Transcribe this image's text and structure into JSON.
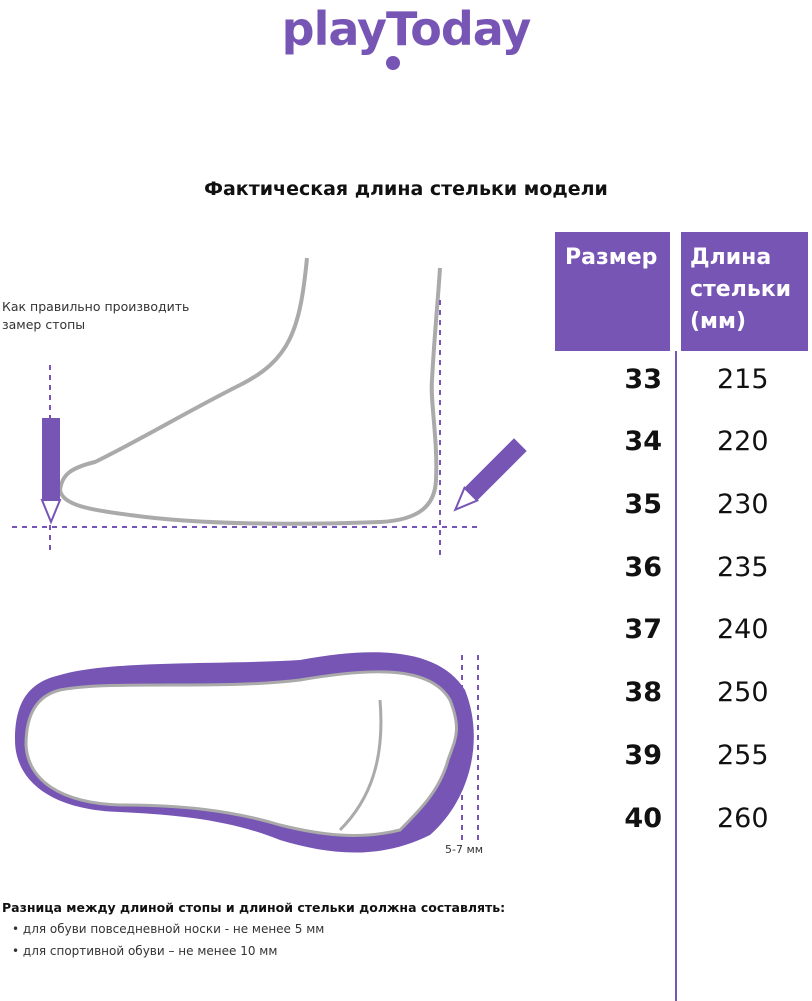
{
  "brand": {
    "logo_text": "playToday",
    "color": "#7755b5"
  },
  "title": "Фактическая длина стельки модели",
  "table": {
    "headers": {
      "size": "Размер",
      "length_lines": [
        "Длина",
        "стельки",
        "(мм)"
      ]
    },
    "rows": [
      {
        "size": "33",
        "length": "215"
      },
      {
        "size": "34",
        "length": "220"
      },
      {
        "size": "35",
        "length": "230"
      },
      {
        "size": "36",
        "length": "235"
      },
      {
        "size": "37",
        "length": "240"
      },
      {
        "size": "38",
        "length": "250"
      },
      {
        "size": "39",
        "length": "255"
      },
      {
        "size": "40",
        "length": "260"
      }
    ]
  },
  "illustration": {
    "howto_lines": [
      "Как правильно производить",
      "замер стопы"
    ],
    "gap_label": "5-7 мм"
  },
  "notes": {
    "heading": "Разница между длиной стопы и длиной стельки должна составлять:",
    "bullets": [
      "• для обуви повседневной носки -  не менее 5 мм",
      "• для спортивной обуви – не менее 10 мм"
    ]
  }
}
